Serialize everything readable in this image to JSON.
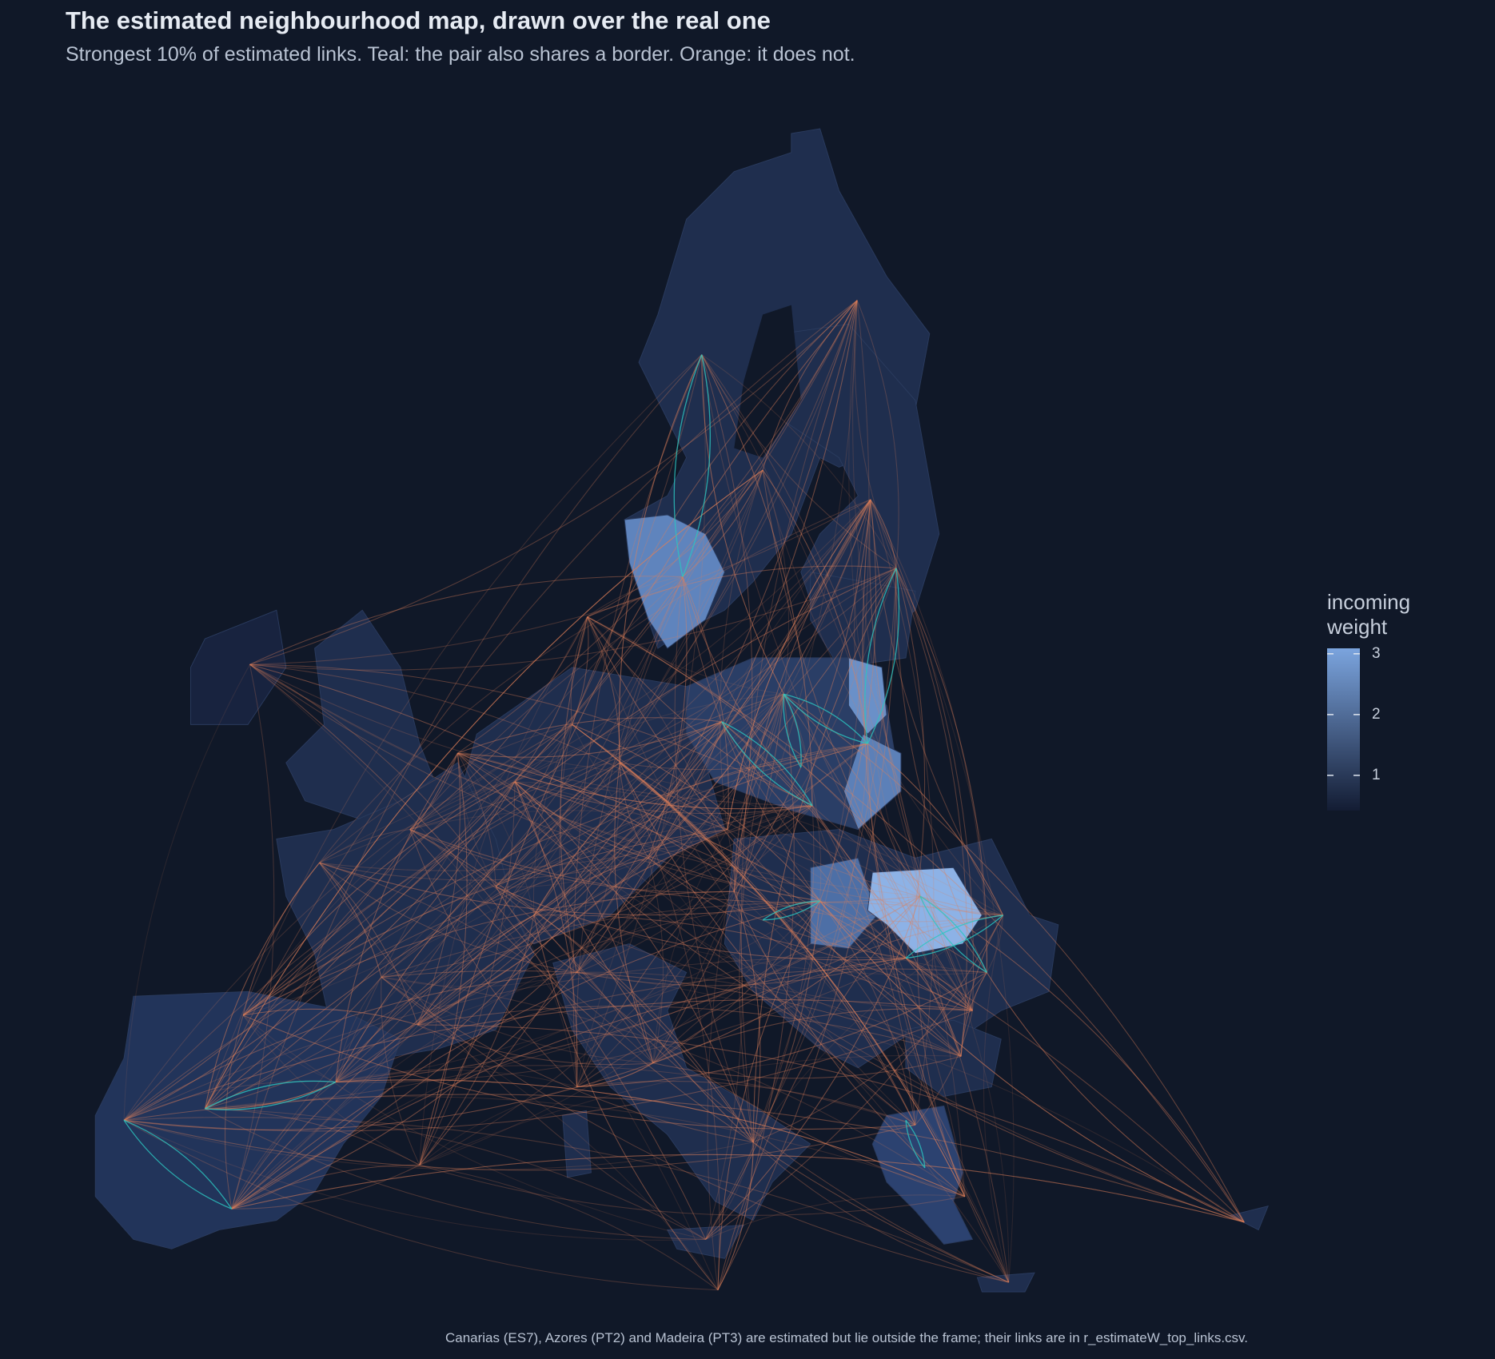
{
  "header": {
    "title": "The estimated neighbourhood map, drawn over the real one",
    "subtitle": "Strongest 10% of estimated links. Teal: the pair also shares a border. Orange: it does not."
  },
  "legend": {
    "title": "incoming weight",
    "lim": [
      0.42,
      3.09
    ],
    "ticks": [
      1,
      2,
      3
    ],
    "colors": [
      "#131c33",
      "#7ba4de"
    ]
  },
  "footnote": "Canarias (ES7), Azores (PT2) and Madeira (PT3) are estimated but lie outside the frame; their links are in r_estimateW_top_links.csv."
}
